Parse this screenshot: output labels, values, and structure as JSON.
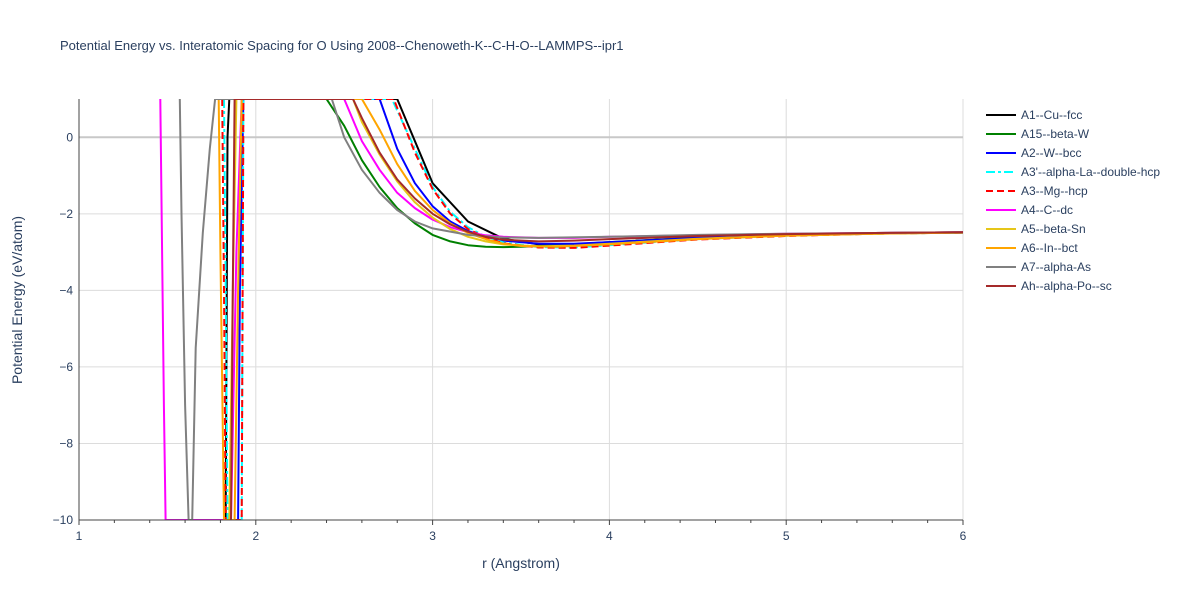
{
  "chart_data": {
    "type": "line",
    "title": "Potential Energy vs. Interatomic Spacing for O Using 2008--Chenoweth-K--C-H-O--LAMMPS--ipr1",
    "xlabel": "r (Angstrom)",
    "ylabel": "Potential Energy (eV/atom)",
    "xlim": [
      1,
      6
    ],
    "ylim": [
      -10,
      1
    ],
    "xticks": [
      "1",
      "2",
      "3",
      "4",
      "5",
      "6"
    ],
    "yticks": [
      "0",
      "−2",
      "−4",
      "−6",
      "−8",
      "−10"
    ],
    "xtick_values": [
      1,
      2,
      3,
      4,
      5,
      6
    ],
    "ytick_values": [
      0,
      -2,
      -4,
      -6,
      -8,
      -10
    ],
    "grid": true,
    "legend_position": "right",
    "series": [
      {
        "name": "A1--Cu--fcc",
        "color": "#000000",
        "dash": "solid",
        "x": [
          1.83,
          1.84,
          1.85,
          2.8,
          3.0,
          3.2,
          3.4,
          3.6,
          3.8,
          4.0,
          4.5,
          5.0,
          5.5,
          6.0
        ],
        "y": [
          -10,
          0,
          1,
          1.0,
          -1.2,
          -2.2,
          -2.65,
          -2.8,
          -2.8,
          -2.75,
          -2.62,
          -2.55,
          -2.5,
          -2.48
        ]
      },
      {
        "name": "A15--beta-W",
        "color": "#008000",
        "dash": "solid",
        "x": [
          2.4,
          2.5,
          2.6,
          2.7,
          2.8,
          2.9,
          3.0,
          3.1,
          3.2,
          3.3,
          3.4,
          3.5,
          3.7,
          4.0,
          4.5,
          5.0,
          5.5,
          6.0
        ],
        "y": [
          1,
          0.3,
          -0.6,
          -1.3,
          -1.85,
          -2.25,
          -2.55,
          -2.72,
          -2.82,
          -2.86,
          -2.87,
          -2.86,
          -2.82,
          -2.74,
          -2.62,
          -2.55,
          -2.51,
          -2.49
        ]
      },
      {
        "name": "A2--W--bcc",
        "color": "#0000ff",
        "dash": "solid",
        "x": [
          1.9,
          1.91,
          1.93,
          2.7,
          2.8,
          2.9,
          3.0,
          3.1,
          3.2,
          3.3,
          3.4,
          3.6,
          3.8,
          4.0,
          4.5,
          5.0,
          5.5,
          6.0
        ],
        "y": [
          -10,
          -4,
          1,
          1,
          -0.3,
          -1.2,
          -1.8,
          -2.2,
          -2.45,
          -2.6,
          -2.7,
          -2.78,
          -2.78,
          -2.74,
          -2.63,
          -2.56,
          -2.51,
          -2.49
        ]
      },
      {
        "name": "A3'--alpha-La--double-hcp",
        "color": "#00ffff",
        "dash": "dashdot",
        "x": [
          1.82,
          1.83,
          1.84,
          1.92,
          1.93,
          2.77,
          2.9,
          3.0,
          3.1,
          3.2,
          3.3,
          3.4,
          3.6,
          3.8,
          4.0,
          4.5,
          5.0,
          5.5,
          6.0
        ],
        "y": [
          1,
          -4,
          -10,
          -10,
          1,
          1,
          -0.3,
          -1.3,
          -1.95,
          -2.35,
          -2.6,
          -2.75,
          -2.87,
          -2.88,
          -2.82,
          -2.66,
          -2.57,
          -2.52,
          -2.49
        ]
      },
      {
        "name": "A3--Mg--hcp",
        "color": "#ff0000",
        "dash": "dash",
        "x": [
          1.81,
          1.82,
          1.83,
          1.92,
          1.93,
          2.78,
          2.9,
          3.0,
          3.1,
          3.2,
          3.3,
          3.4,
          3.6,
          3.8,
          4.0,
          4.5,
          5.0,
          5.5,
          6.0
        ],
        "y": [
          1,
          -4,
          -10,
          -10,
          1,
          1,
          -0.4,
          -1.35,
          -2.0,
          -2.4,
          -2.62,
          -2.77,
          -2.88,
          -2.89,
          -2.83,
          -2.67,
          -2.58,
          -2.52,
          -2.49
        ]
      },
      {
        "name": "A4--C--dc",
        "color": "#ff00ff",
        "dash": "solid",
        "x": [
          1.46,
          1.47,
          1.48,
          1.49,
          1.86,
          1.89,
          1.92,
          2.5,
          2.6,
          2.7,
          2.8,
          2.9,
          3.0,
          3.1,
          3.2,
          3.3,
          3.4,
          3.6,
          3.8,
          4.0,
          4.5,
          5.0,
          5.5,
          6.0
        ],
        "y": [
          1,
          -3,
          -7,
          -10,
          -10,
          -3,
          1,
          1,
          -0.1,
          -0.85,
          -1.45,
          -1.85,
          -2.15,
          -2.35,
          -2.48,
          -2.56,
          -2.6,
          -2.63,
          -2.63,
          -2.6,
          -2.56,
          -2.52,
          -2.5,
          -2.48
        ]
      },
      {
        "name": "A5--beta-Sn",
        "color": "#e6c619",
        "dash": "solid",
        "x": [
          1.85,
          1.87,
          1.89,
          2.55,
          2.6,
          2.7,
          2.8,
          2.9,
          3.0,
          3.1,
          3.2,
          3.3,
          3.4,
          3.6,
          3.8,
          4.0,
          4.5,
          5.0,
          5.5,
          6.0
        ],
        "y": [
          -10,
          -4,
          1,
          1,
          0.4,
          -0.45,
          -1.15,
          -1.7,
          -2.1,
          -2.4,
          -2.6,
          -2.72,
          -2.8,
          -2.85,
          -2.83,
          -2.78,
          -2.65,
          -2.57,
          -2.52,
          -2.49
        ]
      },
      {
        "name": "A6--In--bct",
        "color": "#ffa500",
        "dash": "solid",
        "x": [
          1.79,
          1.8,
          1.82,
          1.88,
          1.9,
          1.92,
          2.6,
          2.7,
          2.8,
          2.9,
          3.0,
          3.1,
          3.2,
          3.3,
          3.4,
          3.5,
          3.7,
          4.0,
          4.5,
          5.0,
          5.5,
          6.0
        ],
        "y": [
          1,
          -3,
          -10,
          -10,
          -4,
          1,
          1,
          0.2,
          -0.7,
          -1.4,
          -1.9,
          -2.25,
          -2.5,
          -2.66,
          -2.78,
          -2.84,
          -2.86,
          -2.8,
          -2.66,
          -2.57,
          -2.52,
          -2.49
        ]
      },
      {
        "name": "A7--alpha-As",
        "color": "#808080",
        "dash": "solid",
        "x": [
          1.57,
          1.58,
          1.6,
          1.62,
          1.64,
          1.66,
          1.7,
          1.74,
          1.77,
          2.43,
          2.5,
          2.6,
          2.7,
          2.8,
          2.9,
          3.0,
          3.2,
          3.4,
          3.6,
          4.0,
          4.5,
          5.0,
          5.5,
          6.0
        ],
        "y": [
          1,
          -2,
          -7,
          -10,
          -10,
          -5.5,
          -2.5,
          -0.3,
          1,
          1,
          0.0,
          -0.85,
          -1.45,
          -1.9,
          -2.2,
          -2.38,
          -2.55,
          -2.62,
          -2.63,
          -2.6,
          -2.55,
          -2.52,
          -2.5,
          -2.48
        ]
      },
      {
        "name": "Ah--alpha-Po--sc",
        "color": "#a52a2a",
        "dash": "solid",
        "x": [
          1.86,
          1.87,
          1.88,
          2.55,
          2.6,
          2.7,
          2.8,
          2.9,
          3.0,
          3.1,
          3.2,
          3.3,
          3.4,
          3.6,
          3.8,
          4.0,
          4.5,
          5.0,
          5.5,
          6.0
        ],
        "y": [
          -10,
          -4,
          1,
          1,
          0.5,
          -0.4,
          -1.1,
          -1.6,
          -2.0,
          -2.28,
          -2.47,
          -2.6,
          -2.68,
          -2.72,
          -2.7,
          -2.66,
          -2.58,
          -2.53,
          -2.5,
          -2.48
        ]
      }
    ]
  }
}
